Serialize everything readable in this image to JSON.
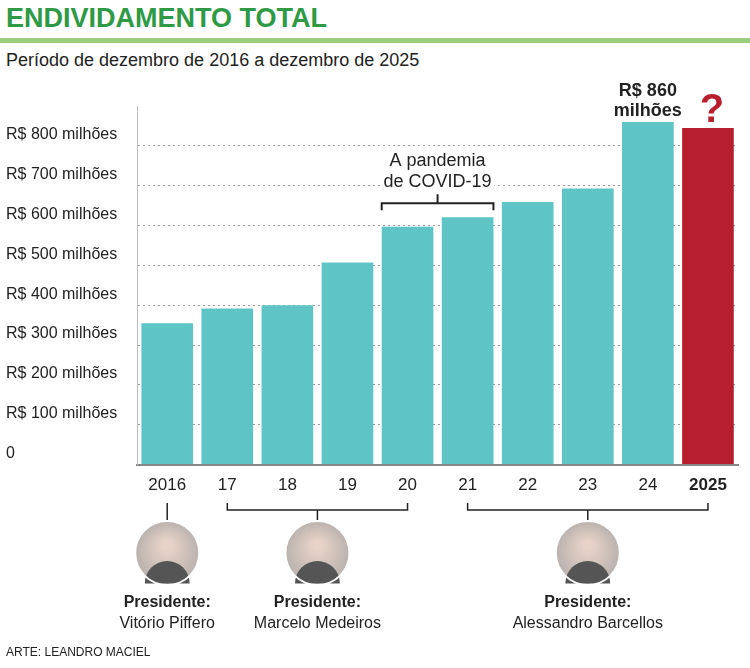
{
  "chart_data": {
    "type": "bar",
    "title": "ENDIVIDAMENTO TOTAL",
    "subtitle": "Período de dezembro de 2016 a dezembro de 2025",
    "categories": [
      "2016",
      "17",
      "18",
      "19",
      "20",
      "21",
      "22",
      "23",
      "24",
      "2025"
    ],
    "values": [
      355,
      392,
      400,
      507,
      597,
      621,
      659,
      693,
      860,
      845
    ],
    "colors": [
      "#5ec4c6",
      "#5ec4c6",
      "#5ec4c6",
      "#5ec4c6",
      "#5ec4c6",
      "#5ec4c6",
      "#5ec4c6",
      "#5ec4c6",
      "#5ec4c6",
      "#b81f2e"
    ],
    "ylim": [
      0,
      900
    ],
    "yticks": [
      0,
      {
        "value": 100,
        "label": "R$ 100 milhões"
      },
      {
        "value": 200,
        "label": "R$ 200 milhões"
      },
      {
        "value": 300,
        "label": "R$ 300 milhões"
      },
      {
        "value": 400,
        "label": "R$ 400 milhões"
      },
      {
        "value": 500,
        "label": "R$ 500 milhões"
      },
      {
        "value": 600,
        "label": "R$ 600 milhões"
      },
      {
        "value": 700,
        "label": "R$ 700 milhões"
      },
      {
        "value": 800,
        "label": "R$ 800 milhões"
      }
    ],
    "grid": true,
    "annotations": [
      {
        "text": "R$ 860 milhões",
        "category": "24"
      },
      {
        "text": "?",
        "category": "2025"
      },
      {
        "text": "A pandemia de COVID-19",
        "from": "20",
        "to": "21"
      }
    ],
    "presidents": [
      {
        "title": "Presidente:",
        "name": "Vitório Piffero",
        "from": "2016",
        "to": "2016"
      },
      {
        "title": "Presidente:",
        "name": "Marcelo Medeiros",
        "from": "17",
        "to": "20"
      },
      {
        "title": "Presidente:",
        "name": "Alessandro Barcellos",
        "from": "21",
        "to": "2025"
      }
    ],
    "credit": "ARTE: LEANDRO MACIEL"
  }
}
